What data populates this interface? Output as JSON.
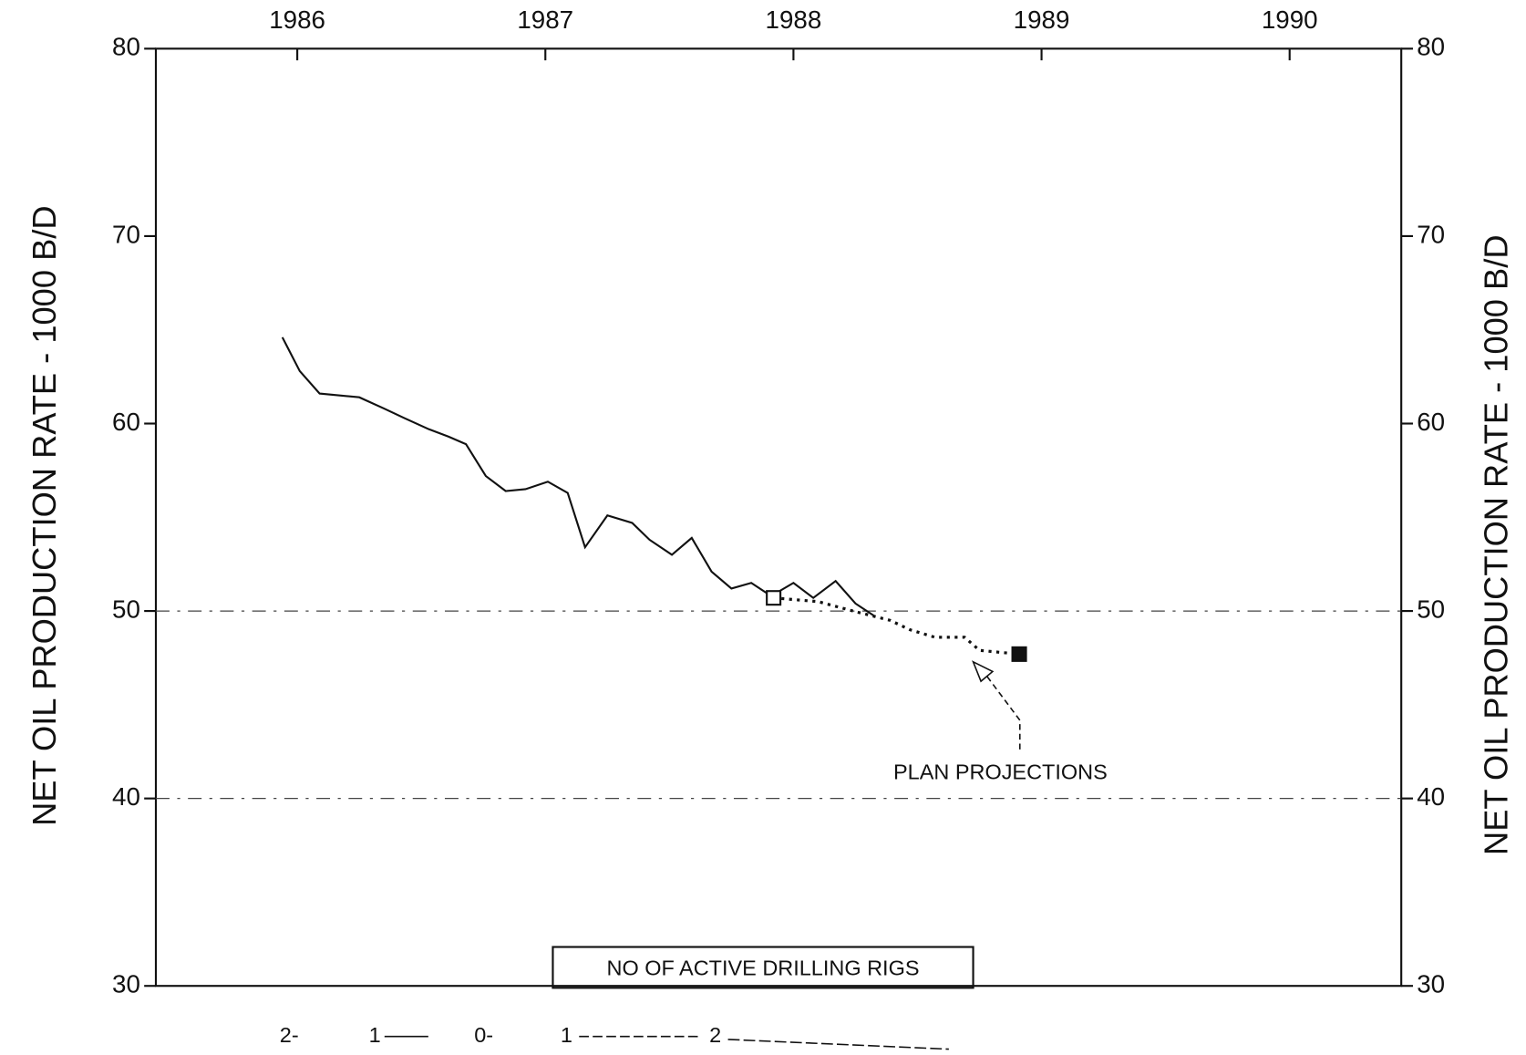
{
  "chart_data": {
    "type": "line",
    "y_label": "NET OIL PRODUCTION RATE - 1000 B/D",
    "y2_label": "NET OIL PRODUCTION RATE - 1000 B/D",
    "xlim": [
      1985.43,
      1990.45
    ],
    "xticks": [
      1986,
      1987,
      1988,
      1989,
      1990
    ],
    "ylim": [
      30,
      80
    ],
    "yticks": [
      30,
      40,
      50,
      60,
      70,
      80
    ],
    "y2lim": [
      30,
      80
    ],
    "y2ticks": [
      30,
      40,
      50,
      60,
      70,
      80
    ],
    "series": [
      {
        "color": "#111111",
        "style": "solid",
        "x": [
          1985.94,
          1986.01,
          1986.09,
          1986.25,
          1986.35,
          1986.43,
          1986.53,
          1986.61,
          1986.68,
          1986.76,
          1986.84,
          1986.92,
          1987.01,
          1987.09,
          1987.16,
          1987.25,
          1987.35,
          1987.42,
          1987.51,
          1987.59,
          1987.67,
          1987.75,
          1987.83,
          1987.91,
          1988.0,
          1988.08,
          1988.17,
          1988.25,
          1988.33
        ],
        "values": [
          64.6,
          62.8,
          61.6,
          61.4,
          60.8,
          60.3,
          59.7,
          59.3,
          58.9,
          57.2,
          56.4,
          56.5,
          56.9,
          56.3,
          53.4,
          55.1,
          54.7,
          53.8,
          53.0,
          53.9,
          52.1,
          51.2,
          51.5,
          50.8,
          51.5,
          50.7,
          51.6,
          50.4,
          49.7
        ]
      },
      {
        "color": "#111111",
        "style": "dotted",
        "x": [
          1987.92,
          1988.1,
          1988.24,
          1988.39,
          1988.47,
          1988.57,
          1988.69,
          1988.75,
          1988.91
        ],
        "values": [
          50.7,
          50.5,
          50.0,
          49.5,
          49.0,
          48.6,
          48.6,
          47.9,
          47.7
        ]
      }
    ],
    "annotation": "PLAN PROJECTIONS",
    "rig_label": "NO OF ACTIVE DRILLING RIGS",
    "rig_scale_labels": [
      "2-",
      "1",
      "0-",
      "1",
      "2"
    ]
  }
}
